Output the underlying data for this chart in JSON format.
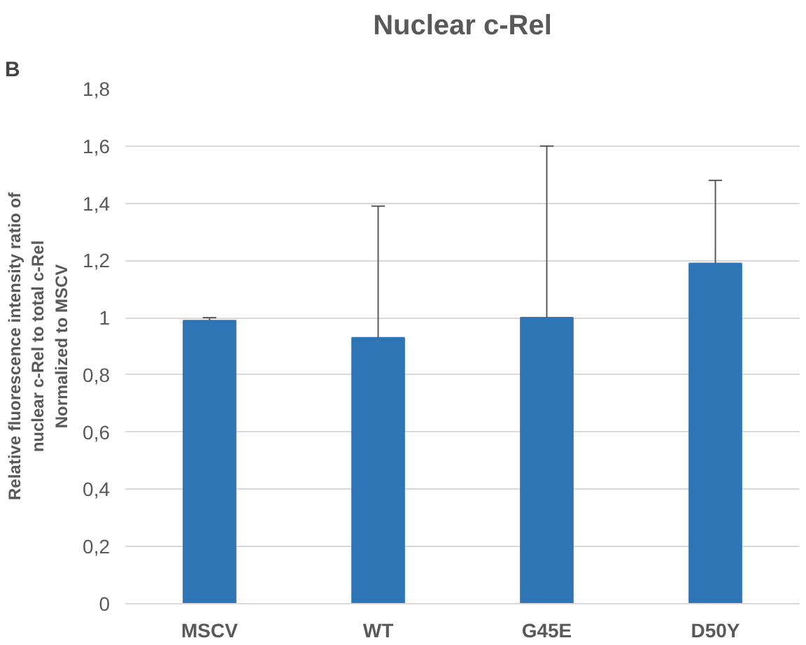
{
  "chart_data": {
    "type": "bar",
    "title": "Nuclear c-Rel",
    "ylabel": "Relative fluorescence intensity ratio of\nnuclear c-Rel to total c-Rel\nNormalized to MSCV",
    "annotations": [
      "B"
    ],
    "categories": [
      "MSCV",
      "WT",
      "G45E",
      "D50Y"
    ],
    "values": [
      0.99,
      0.93,
      1.0,
      1.19
    ],
    "errors": [
      [
        0.99,
        1.0
      ],
      [
        0.93,
        1.39
      ],
      [
        1.0,
        1.6
      ],
      [
        1.19,
        1.48
      ]
    ],
    "color": "#2e75b6",
    "ylim": [
      0,
      1.8
    ],
    "yticks": [
      {
        "value": 0,
        "label": "0"
      },
      {
        "value": 0.2,
        "label": "0,2"
      },
      {
        "value": 0.4,
        "label": "0,4"
      },
      {
        "value": 0.6,
        "label": "0,6"
      },
      {
        "value": 0.8,
        "label": "0,8"
      },
      {
        "value": 1,
        "label": "1"
      },
      {
        "value": 1.2,
        "label": "1,2"
      },
      {
        "value": 1.4,
        "label": "1,4"
      },
      {
        "value": 1.6,
        "label": "1,6"
      },
      {
        "value": 1.8,
        "label": "1,8"
      }
    ],
    "grid": "y"
  }
}
